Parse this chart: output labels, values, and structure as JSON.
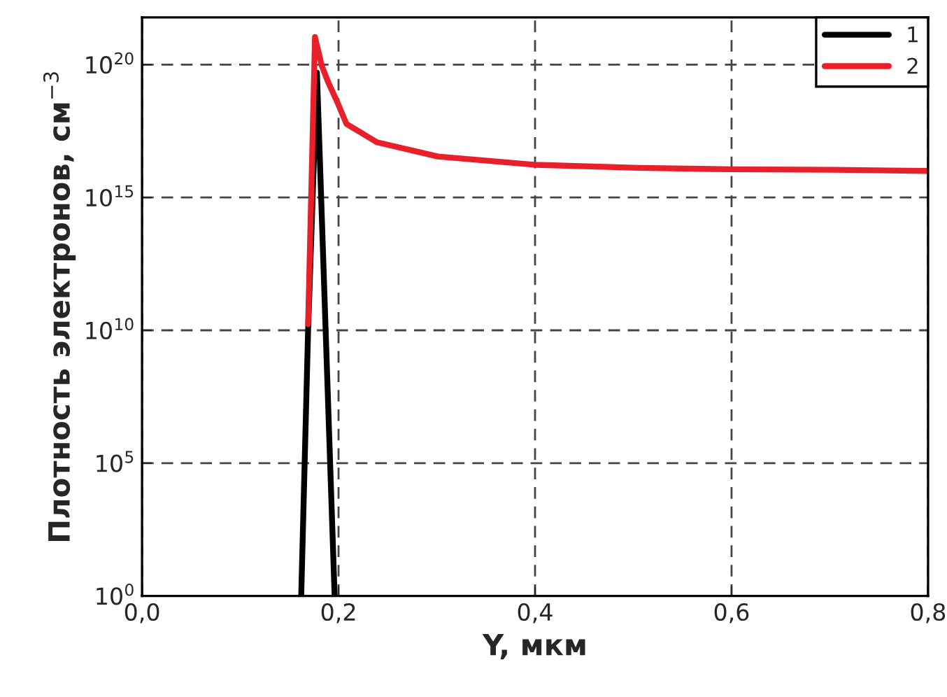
{
  "chart_data": {
    "type": "line",
    "xlabel": "Y, мкм",
    "ylabel": "Плотность электронов, см$^{−3}$",
    "series": [
      {
        "name": "1",
        "color": "#000000",
        "x": [
          0.162,
          0.169,
          0.178,
          0.196
        ],
        "values": [
          1,
          10000000000.0,
          5e+19,
          1
        ]
      },
      {
        "name": "2",
        "color": "#e8202a",
        "x": [
          0.169,
          0.176,
          0.183,
          0.189,
          0.199,
          0.208,
          0.239,
          0.301,
          0.4,
          0.506,
          0.599,
          0.704,
          0.8
        ],
        "values": [
          17000000000.0,
          1.1e+21,
          9e+19,
          2.4e+19,
          3.7e+18,
          5.9e+17,
          1.2e+17,
          3.5e+16,
          1.7e+16,
          1.3e+16,
          1.15e+16,
          1.1e+16,
          1e+16
        ]
      }
    ],
    "log": "y",
    "xlim": [
      0,
      0.8
    ],
    "ylim": [
      1,
      6e+21
    ],
    "xticks": [
      {
        "value": 0,
        "label": "0,0"
      },
      {
        "value": 0.2,
        "label": "0,2"
      },
      {
        "value": 0.4,
        "label": "0,4"
      },
      {
        "value": 0.6,
        "label": "0,6"
      },
      {
        "value": 0.8,
        "label": "0,8"
      }
    ],
    "yticks": [
      {
        "value": 1,
        "label": "10$^{0}$"
      },
      {
        "value": 100000.0,
        "label": "10$^{5}$"
      },
      {
        "value": 10000000000.0,
        "label": "10$^{10}$"
      },
      {
        "value": 1000000000000000.0,
        "label": "10$^{15}$"
      },
      {
        "value": 1e+20,
        "label": "10$^{20}$"
      }
    ],
    "grid": true,
    "legend": "top right",
    "line_style": "solid",
    "marker": "none"
  }
}
